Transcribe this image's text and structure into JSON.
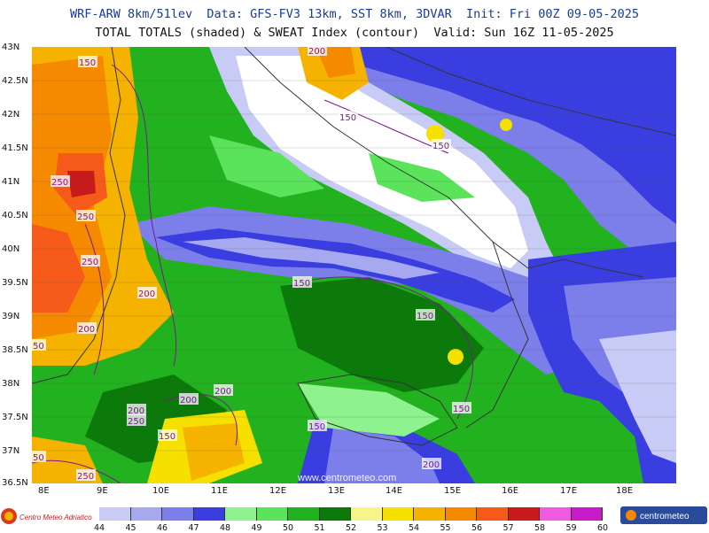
{
  "header": {
    "line1": "WRF-ARW 8km/51lev  Data: GFS-FV3 13km, SST 8km, 3DVAR  Init: Fri 00Z 09-05-2025",
    "line2": "TOTAL TOTALS (shaded) & SWEAT Index (contour)  Valid: Sun 16Z 11-05-2025"
  },
  "lat_labels": [
    "43N",
    "42.5N",
    "42N",
    "41.5N",
    "41N",
    "40.5N",
    "40N",
    "39.5N",
    "39N",
    "38.5N",
    "38N",
    "37.5N",
    "37N",
    "36.5N"
  ],
  "lon_labels": [
    "8E",
    "9E",
    "10E",
    "11E",
    "12E",
    "13E",
    "14E",
    "15E",
    "16E",
    "17E",
    "18E"
  ],
  "sweat_labels": [
    {
      "text": "150"
    },
    {
      "text": "200"
    },
    {
      "text": "150"
    },
    {
      "text": "150"
    },
    {
      "text": "250"
    },
    {
      "text": "250"
    },
    {
      "text": "250"
    },
    {
      "text": "200"
    },
    {
      "text": "200"
    },
    {
      "text": "150"
    },
    {
      "text": "150"
    },
    {
      "text": "200"
    },
    {
      "text": "200"
    },
    {
      "text": "200"
    },
    {
      "text": "250"
    },
    {
      "text": "150"
    },
    {
      "text": "150"
    },
    {
      "text": "150"
    },
    {
      "text": "200"
    },
    {
      "text": "250"
    },
    {
      "text": "50"
    },
    {
      "text": "50"
    }
  ],
  "watermark": "www.centrometeo.com",
  "colorbar": {
    "ticks": [
      "44",
      "45",
      "46",
      "47",
      "48",
      "49",
      "50",
      "51",
      "52",
      "53",
      "54",
      "55",
      "56",
      "57",
      "58",
      "59",
      "60"
    ],
    "colors": [
      "#c9cbf7",
      "#a6a8f0",
      "#7c7eea",
      "#3a3ee0",
      "#8ef28e",
      "#5be35b",
      "#22b21f",
      "#0b7a0b",
      "#f7f58a",
      "#f5e000",
      "#f5b300",
      "#f58a00",
      "#f55a1a",
      "#c81a1a",
      "#f05ae0",
      "#c81ac8"
    ]
  },
  "logos": {
    "left": "Centro Meteo Adriatico",
    "right": "centrometeo"
  }
}
